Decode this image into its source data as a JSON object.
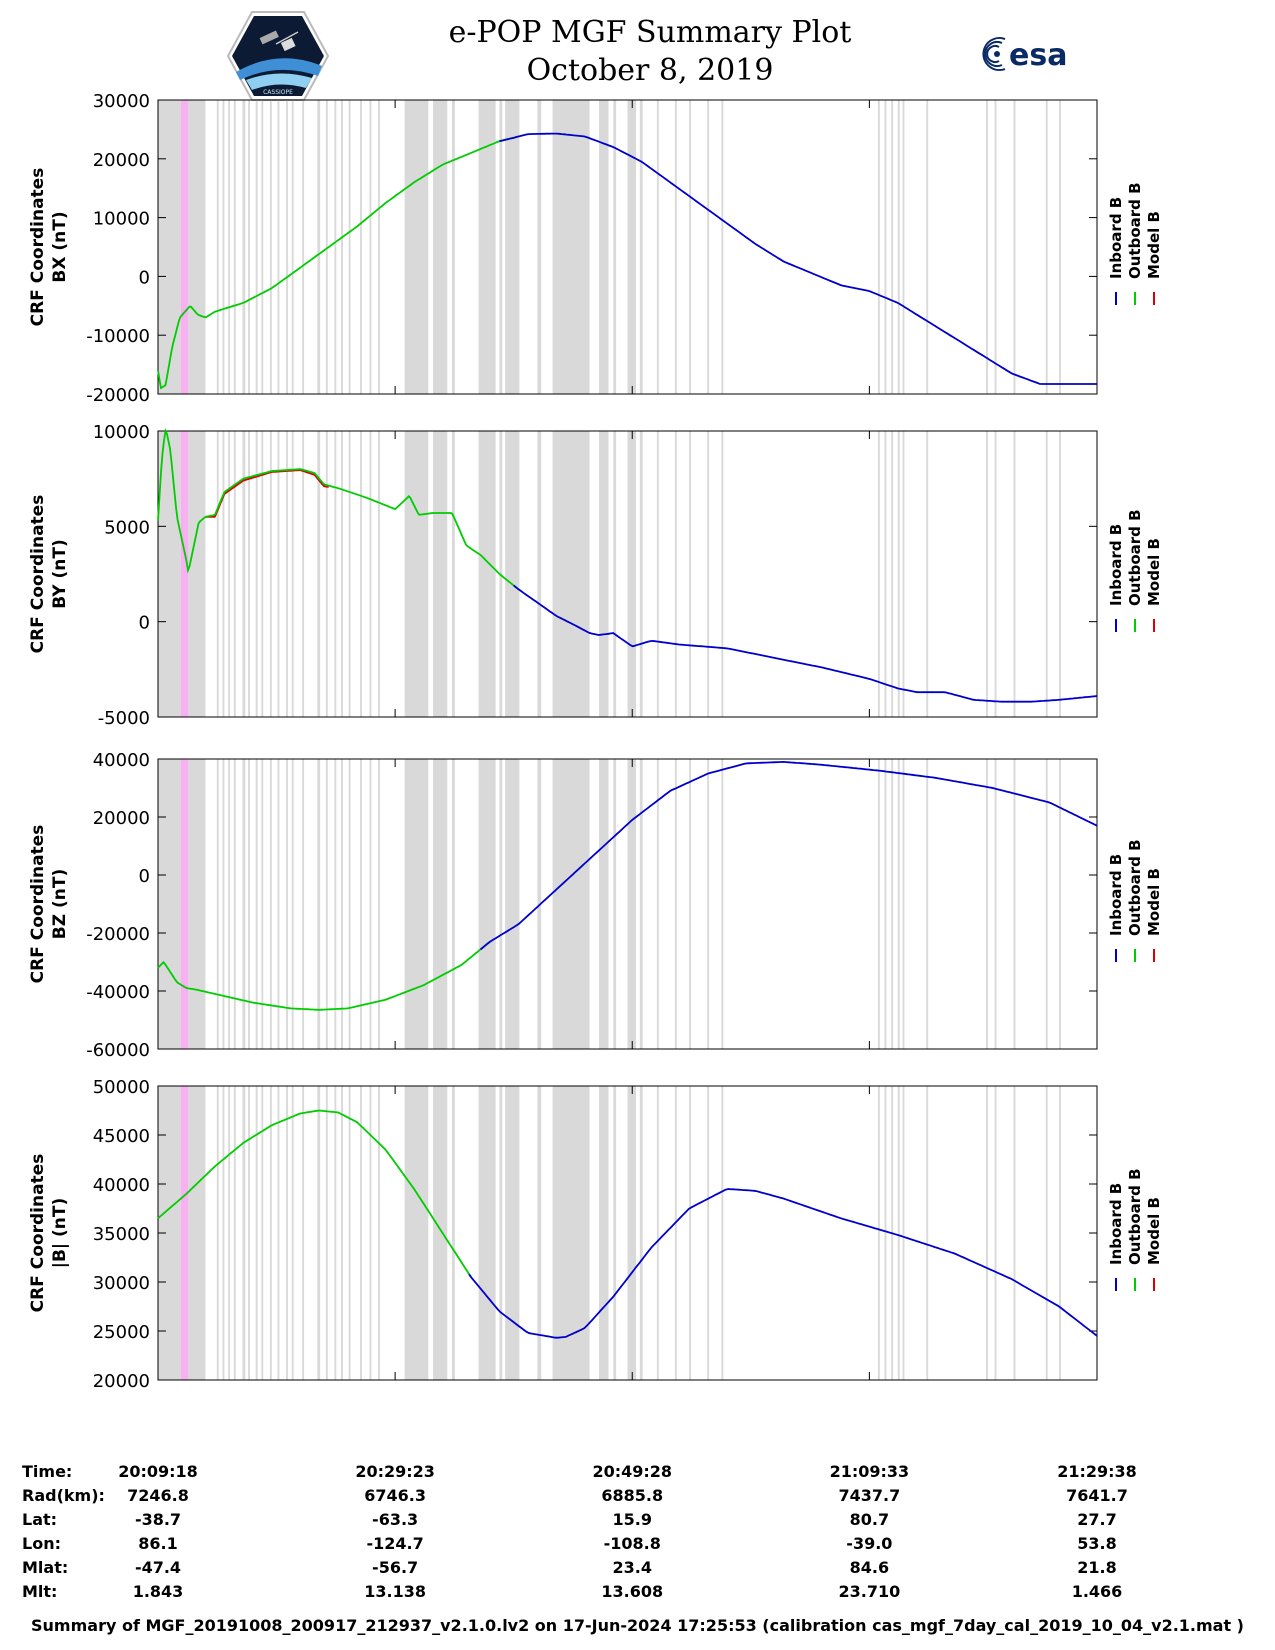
{
  "header": {
    "title_line1": "e-POP MGF Summary Plot",
    "title_line2": "October 8, 2019",
    "left_logo": "cassiope-mission-logo",
    "left_logo_text": "CASSIOPE",
    "right_logo": "esa",
    "right_logo_text": "esa"
  },
  "colors": {
    "inboard": "#0000cc",
    "outboard": "#00cc00",
    "model": "#dd0000",
    "gap": "#d9d9d9",
    "highlight": "#f7b0f0"
  },
  "legend": [
    "Inboard B",
    "Outboard B",
    "Model B"
  ],
  "chart_data": [
    {
      "type": "line",
      "id": "bx",
      "ylabel_line1": "CRF Coordinates",
      "ylabel_line2": "BX (nT)",
      "ylim": [
        -20000,
        30000
      ],
      "yticks": [
        -20000,
        -10000,
        0,
        10000,
        20000,
        30000
      ],
      "ytick_labels": [
        "-20000",
        "-10000",
        "0",
        "10000",
        "20000",
        "30000"
      ],
      "x_minutes": [
        0,
        0.3,
        0.8,
        1.5,
        2.3,
        3.4,
        4.2,
        5,
        6,
        7,
        9,
        12,
        15,
        18,
        21,
        24,
        27,
        30,
        33,
        36,
        37.3,
        39,
        42,
        45,
        48,
        51,
        54,
        57,
        60,
        63,
        66,
        69,
        72,
        75,
        78,
        81,
        84,
        87,
        90,
        93,
        96,
        99
      ],
      "series": [
        {
          "name": "Outboard B",
          "segment": [
            0,
            38
          ],
          "values": [
            -16000,
            -19000,
            -18500,
            -12000,
            -7000,
            -5000,
            -6500,
            -7000,
            -6000,
            -5500,
            -4500,
            -2000,
            1500,
            5000,
            8500,
            12500,
            16000,
            19000,
            21000,
            23000,
            23500,
            24200,
            24300,
            23800,
            22000,
            19500,
            16000,
            12500,
            9000,
            5500,
            2500,
            500,
            -1500,
            -2500,
            -4500,
            -7500,
            -10500,
            -13500,
            -16500,
            -18300,
            -18300,
            -18300
          ]
        },
        {
          "name": "Inboard B",
          "segment": [
            36,
            99
          ],
          "values": [
            -16000,
            -19000,
            -18500,
            -12000,
            -7000,
            -5000,
            -6500,
            -7000,
            -6000,
            -5500,
            -4500,
            -2000,
            1500,
            5000,
            8500,
            12500,
            16000,
            19000,
            21000,
            23000,
            23500,
            24200,
            24300,
            23800,
            22000,
            19500,
            16000,
            12500,
            9000,
            5500,
            2500,
            500,
            -1500,
            -2500,
            -4500,
            -7500,
            -10500,
            -13500,
            -16500,
            -18300,
            -18300,
            -18300
          ]
        }
      ]
    },
    {
      "type": "line",
      "id": "by",
      "ylabel_line1": "CRF Coordinates",
      "ylabel_line2": "BY (nT)",
      "ylim": [
        -5000,
        10000
      ],
      "yticks": [
        -5000,
        0,
        5000,
        10000
      ],
      "ytick_labels": [
        "-5000",
        "0",
        "5000",
        "10000"
      ],
      "x_minutes": [
        0,
        0.4,
        0.8,
        1.3,
        2,
        3,
        3.2,
        4.3,
        5,
        6,
        7,
        9,
        12,
        15,
        16.5,
        17.5,
        19,
        22,
        25,
        26.5,
        27.5,
        29,
        31,
        32.5,
        34,
        36,
        38,
        40,
        42,
        44,
        45.5,
        46.5,
        48,
        50,
        52,
        55,
        60,
        65,
        70,
        75,
        78,
        80,
        83,
        86,
        89,
        92,
        95,
        99
      ],
      "series": [
        {
          "name": "Outboard B",
          "segment": [
            0,
            38
          ],
          "values": [
            5300,
            8500,
            10200,
            9000,
            5500,
            3200,
            2600,
            5200,
            5500,
            5600,
            6800,
            7500,
            7900,
            8000,
            7800,
            7200,
            7000,
            6500,
            5900,
            6600,
            5600,
            5700,
            5700,
            4000,
            3500,
            2500,
            1700,
            1000,
            300,
            -200,
            -600,
            -700,
            -600,
            -1300,
            -1000,
            -1200,
            -1400,
            -1900,
            -2400,
            -3000,
            -3500,
            -3700,
            -3700,
            -4100,
            -4200,
            -4200,
            -4100,
            -3900
          ]
        },
        {
          "name": "Inboard B",
          "segment": [
            37.5,
            99
          ],
          "values": [
            5300,
            8500,
            10200,
            9000,
            5500,
            3200,
            2600,
            5200,
            5500,
            5600,
            6800,
            7500,
            7900,
            8000,
            7800,
            7200,
            7000,
            6500,
            5900,
            6600,
            5600,
            5700,
            5700,
            4000,
            3500,
            2500,
            1700,
            1000,
            300,
            -200,
            -600,
            -700,
            -600,
            -1300,
            -1000,
            -1200,
            -1400,
            -1900,
            -2400,
            -3000,
            -3500,
            -3700,
            -3700,
            -4100,
            -4200,
            -4200,
            -4100,
            -3900
          ]
        },
        {
          "name": "Model B",
          "segment": [
            5,
            18
          ],
          "values": [
            5300,
            8500,
            10200,
            9000,
            5500,
            3200,
            2600,
            5200,
            5500,
            5500,
            6700,
            7400,
            7850,
            7950,
            7700,
            7100,
            7000,
            6500,
            5900,
            6600,
            5600,
            5700,
            5700,
            4000,
            3500,
            2500,
            1700,
            1000,
            300,
            -200,
            -600,
            -700,
            -600,
            -1300,
            -1000,
            -1200,
            -1400,
            -1900,
            -2400,
            -3000,
            -3500,
            -3700,
            -3700,
            -4100,
            -4200,
            -4200,
            -4100,
            -3900
          ]
        }
      ]
    },
    {
      "type": "line",
      "id": "bz",
      "ylabel_line1": "CRF Coordinates",
      "ylabel_line2": "BZ (nT)",
      "ylim": [
        -60000,
        40000
      ],
      "yticks": [
        -60000,
        -40000,
        -20000,
        0,
        20000,
        40000
      ],
      "ytick_labels": [
        "-60000",
        "-40000",
        "-20000",
        "0",
        "20000",
        "40000"
      ],
      "x_minutes": [
        0,
        0.6,
        1.2,
        2,
        3,
        4,
        6,
        10,
        14,
        17,
        20,
        24,
        28,
        32,
        35,
        38,
        42,
        46,
        50,
        54,
        58,
        62,
        66,
        70,
        76,
        82,
        88,
        94,
        99
      ],
      "series": [
        {
          "name": "Outboard B",
          "segment": [
            0,
            35
          ],
          "values": [
            -32000,
            -30000,
            -33000,
            -37000,
            -39000,
            -39500,
            -41000,
            -44000,
            -46000,
            -46500,
            -46000,
            -43000,
            -38000,
            -31000,
            -23000,
            -17000,
            -5000,
            7000,
            19000,
            29000,
            35000,
            38500,
            39000,
            38000,
            36000,
            33500,
            30000,
            25000,
            17000
          ]
        },
        {
          "name": "Inboard B",
          "segment": [
            34,
            99
          ],
          "values": [
            -32000,
            -30000,
            -33000,
            -37000,
            -39000,
            -39500,
            -41000,
            -44000,
            -46000,
            -46500,
            -46000,
            -43000,
            -38000,
            -31000,
            -23000,
            -17000,
            -5000,
            7000,
            19000,
            29000,
            35000,
            38500,
            39000,
            38000,
            36000,
            33500,
            30000,
            25000,
            17000
          ]
        }
      ]
    },
    {
      "type": "line",
      "id": "bmag",
      "ylabel_line1": "CRF Coordinates",
      "ylabel_line2": "|B| (nT)",
      "ylim": [
        20000,
        50000
      ],
      "yticks": [
        20000,
        25000,
        30000,
        35000,
        40000,
        45000,
        50000
      ],
      "ytick_labels": [
        "20000",
        "25000",
        "30000",
        "35000",
        "40000",
        "45000",
        "50000"
      ],
      "x_minutes": [
        0,
        3,
        6,
        9,
        12,
        15,
        17,
        19,
        21,
        24,
        27,
        30,
        33,
        36,
        39,
        42,
        43,
        45,
        48,
        52,
        56,
        60,
        63,
        66,
        72,
        78,
        84,
        90,
        95,
        99
      ],
      "series": [
        {
          "name": "Outboard B",
          "segment": [
            0,
            33
          ],
          "values": [
            36500,
            39000,
            41800,
            44200,
            46000,
            47200,
            47500,
            47300,
            46300,
            43500,
            39500,
            35000,
            30500,
            27000,
            24800,
            24300,
            24400,
            25300,
            28500,
            33500,
            37500,
            39500,
            39300,
            38500,
            36500,
            34800,
            32900,
            30300,
            27500,
            24500
          ]
        },
        {
          "name": "Inboard B",
          "segment": [
            32.8,
            99
          ],
          "values": [
            36500,
            39000,
            41800,
            44200,
            46000,
            47200,
            47500,
            47300,
            46300,
            43500,
            39500,
            35000,
            30500,
            27000,
            24800,
            24300,
            24400,
            25300,
            28500,
            33500,
            37500,
            39500,
            39300,
            38500,
            36500,
            34800,
            32900,
            30300,
            27500,
            24500
          ]
        }
      ]
    }
  ],
  "x_axis": {
    "start": "20:09:18",
    "end_minutes": 99,
    "tick_minutes": [
      0,
      25,
      50,
      75,
      99
    ]
  },
  "gaps_minutes": [
    [
      0,
      2.4
    ],
    [
      3.2,
      5
    ],
    [
      6.2,
      6.4
    ],
    [
      6.8,
      7
    ],
    [
      7.4,
      7.6
    ],
    [
      8,
      8.2
    ],
    [
      8.9,
      9.2
    ],
    [
      9.5,
      9.7
    ],
    [
      10.3,
      10.5
    ],
    [
      10.9,
      11.1
    ],
    [
      11.8,
      12
    ],
    [
      12.6,
      12.8
    ],
    [
      13.5,
      13.7
    ],
    [
      14.1,
      14.3
    ],
    [
      15.2,
      15.4
    ],
    [
      16.8,
      17.1
    ],
    [
      17.7,
      17.9
    ],
    [
      18.6,
      18.8
    ],
    [
      19.3,
      19.5
    ],
    [
      20.1,
      20.3
    ],
    [
      21.3,
      21.5
    ],
    [
      22.3,
      22.5
    ],
    [
      23.2,
      23.4
    ],
    [
      26,
      28.5
    ],
    [
      29,
      30.5
    ],
    [
      31,
      31.3
    ],
    [
      33.8,
      35.6
    ],
    [
      36,
      36.3
    ],
    [
      36.6,
      38.1
    ],
    [
      40,
      40.4
    ],
    [
      41.6,
      45.5
    ],
    [
      46.5,
      47.5
    ],
    [
      48,
      48.3
    ],
    [
      49.5,
      50.4
    ],
    [
      50.8,
      51.1
    ],
    [
      52.6,
      52.8
    ],
    [
      54.5,
      54.7
    ],
    [
      56,
      56.2
    ],
    [
      57.9,
      58.1
    ],
    [
      59.4,
      59.6
    ],
    [
      75.9,
      76.1
    ],
    [
      76.6,
      76.8
    ],
    [
      77.3,
      77.5
    ],
    [
      78,
      78.2
    ],
    [
      78.5,
      78.7
    ],
    [
      81,
      81.2
    ],
    [
      87.3,
      87.5
    ],
    [
      88.2,
      88.4
    ],
    [
      90.2,
      90.4
    ],
    [
      93.6,
      93.8
    ],
    [
      95,
      95.2
    ]
  ],
  "highlight_minutes": [
    2.4,
    3.2
  ],
  "ephemeris": {
    "labels": [
      "Time:",
      "Rad(km):",
      "Lat:",
      "Lon:",
      "Mlat:",
      "Mlt:"
    ],
    "columns": [
      [
        "20:09:18",
        "7246.8",
        "-38.7",
        "86.1",
        "-47.4",
        "1.843"
      ],
      [
        "20:29:23",
        "6746.3",
        "-63.3",
        "-124.7",
        "-56.7",
        "13.138"
      ],
      [
        "20:49:28",
        "6885.8",
        "15.9",
        "-108.8",
        "23.4",
        "13.608"
      ],
      [
        "21:09:33",
        "7437.7",
        "80.7",
        "-39.0",
        "84.6",
        "23.710"
      ],
      [
        "21:29:38",
        "7641.7",
        "27.7",
        "53.8",
        "21.8",
        "1.466"
      ]
    ]
  },
  "footer": "Summary of MGF_20191008_200917_212937_v2.1.0.lv2 on 17-Jun-2024 17:25:53 (calibration cas_mgf_7day_cal_2019_10_04_v2.1.mat )"
}
